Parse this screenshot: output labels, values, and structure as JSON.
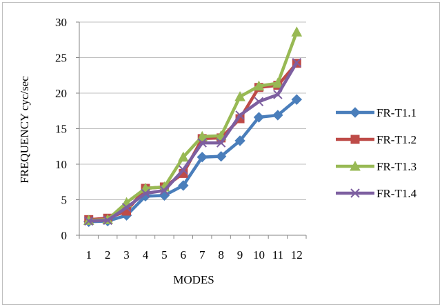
{
  "chart_data": {
    "type": "line",
    "title": "",
    "xlabel": "MODES",
    "ylabel": "FREQUENCY cyc/sec",
    "x": [
      1,
      2,
      3,
      4,
      5,
      6,
      7,
      8,
      9,
      10,
      11,
      12
    ],
    "ylim": [
      0,
      30
    ],
    "yticks": [
      0,
      5,
      10,
      15,
      20,
      25,
      30
    ],
    "grid": "horizontal",
    "legend_position": "right",
    "series": [
      {
        "name": "FR-T1.1",
        "color": "#4a7ebb",
        "marker": "diamond",
        "values": [
          1.9,
          2.0,
          2.8,
          5.5,
          5.6,
          7.0,
          11.0,
          11.1,
          13.3,
          16.6,
          16.9,
          19.1
        ]
      },
      {
        "name": "FR-T1.2",
        "color": "#be4b48",
        "marker": "square",
        "values": [
          2.2,
          2.4,
          3.4,
          6.6,
          6.8,
          8.7,
          13.6,
          13.7,
          16.4,
          20.8,
          21.1,
          24.2
        ]
      },
      {
        "name": "FR-T1.3",
        "color": "#98b954",
        "marker": "triangle",
        "values": [
          2.1,
          2.2,
          4.6,
          6.6,
          6.8,
          11.0,
          13.9,
          14.0,
          19.5,
          21.0,
          21.4,
          28.6
        ]
      },
      {
        "name": "FR-T1.4",
        "color": "#7d5fa0",
        "marker": "x",
        "values": [
          2.0,
          2.1,
          3.9,
          5.9,
          6.3,
          9.2,
          13.0,
          13.0,
          16.9,
          18.8,
          19.8,
          24.3
        ]
      }
    ]
  }
}
